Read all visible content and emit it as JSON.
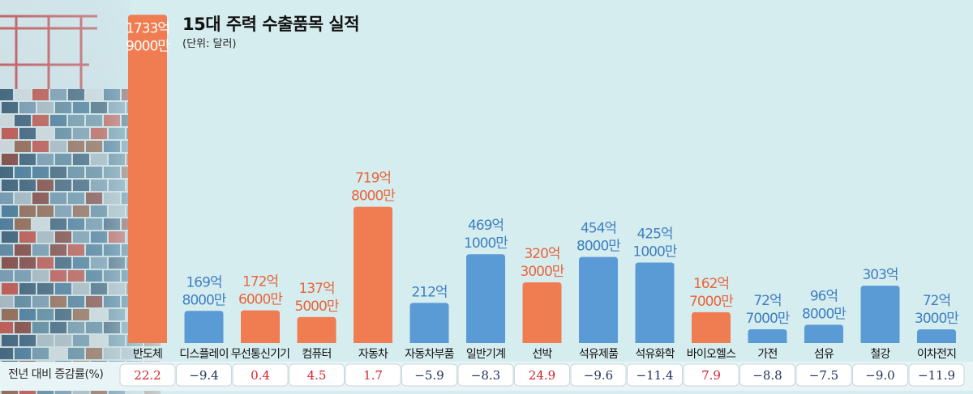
{
  "title": "15대 주력 수출품목 실적",
  "unit": "(단위: 달러)",
  "rate_label": "전년 대비 증감률(%)",
  "colors": {
    "orange": "#f07c52",
    "blue": "#5b9bd5",
    "orange_text": "#e8643a",
    "blue_text": "#3e7fc1",
    "pos_text": "#d3212c",
    "neg_text": "#23325e"
  },
  "chart_data": {
    "type": "bar",
    "title": "15대 주력 수출품목 실적",
    "ylabel": "",
    "categories": [
      "반도체",
      "디스플레이",
      "무선통신기기",
      "컴퓨터",
      "자동차",
      "자동차부품",
      "일반기계",
      "선박",
      "석유제품",
      "석유화학",
      "바이오헬스",
      "가전",
      "섬유",
      "철강",
      "이차전지"
    ],
    "values": [
      1733.9,
      169.8,
      172.6,
      137.5,
      719.8,
      212,
      469.1,
      320.3,
      454.8,
      425.1,
      162.7,
      72.7,
      96.8,
      303,
      72.3
    ],
    "value_labels": [
      [
        "1733억",
        "9000만"
      ],
      [
        "169억",
        "8000만"
      ],
      [
        "172억",
        "6000만"
      ],
      [
        "137억",
        "5000만"
      ],
      [
        "719억",
        "8000만"
      ],
      [
        "212억"
      ],
      [
        "469억",
        "1000만"
      ],
      [
        "320억",
        "3000만"
      ],
      [
        "454억",
        "8000만"
      ],
      [
        "425억",
        "1000만"
      ],
      [
        "162억",
        "7000만"
      ],
      [
        "72억",
        "7000만"
      ],
      [
        "96억",
        "8000만"
      ],
      [
        "303억"
      ],
      [
        "72억",
        "3000만"
      ]
    ],
    "growth_rates": [
      "22.2",
      "−9.4",
      "0.4",
      "4.5",
      "1.7",
      "−5.9",
      "−8.3",
      "24.9",
      "−9.6",
      "−11.4",
      "7.9",
      "−8.8",
      "−7.5",
      "−9.0",
      "−11.9"
    ],
    "bar_colors": [
      "orange",
      "blue",
      "orange",
      "orange",
      "orange",
      "blue",
      "blue",
      "orange",
      "blue",
      "blue",
      "orange",
      "blue",
      "blue",
      "blue",
      "blue"
    ]
  }
}
